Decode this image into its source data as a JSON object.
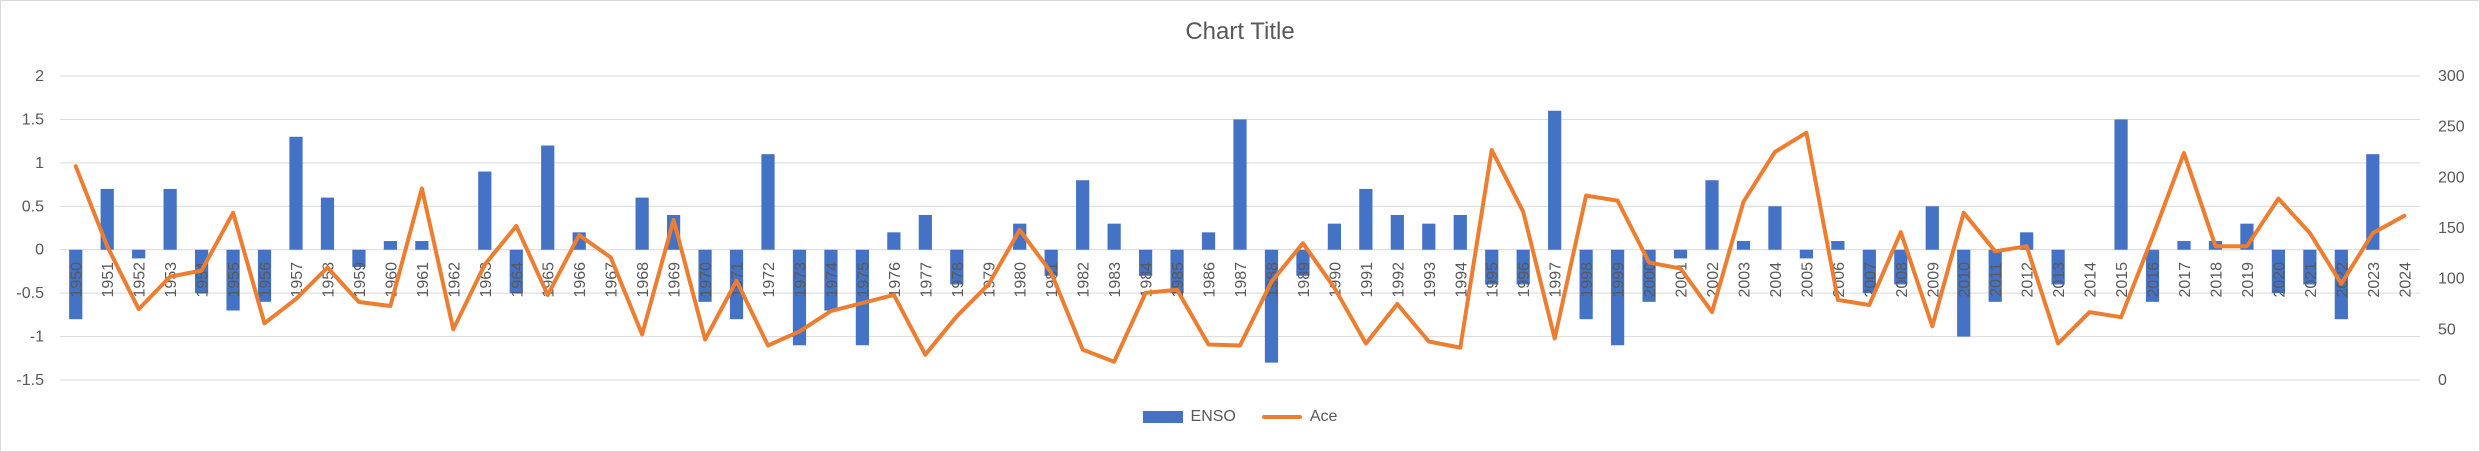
{
  "chart_data": {
    "type": "bar",
    "title": "Chart Title",
    "categories": [
      "1950",
      "1951",
      "1952",
      "1953",
      "1954",
      "1955",
      "1956",
      "1957",
      "1958",
      "1959",
      "1960",
      "1961",
      "1962",
      "1963",
      "1964",
      "1965",
      "1966",
      "1967",
      "1968",
      "1969",
      "1970",
      "1971",
      "1972",
      "1973",
      "1974",
      "1975",
      "1976",
      "1977",
      "1978",
      "1979",
      "1980",
      "1981",
      "1982",
      "1983",
      "1984",
      "1985",
      "1986",
      "1987",
      "1988",
      "1989",
      "1990",
      "1991",
      "1992",
      "1993",
      "1994",
      "1995",
      "1996",
      "1997",
      "1998",
      "1999",
      "2000",
      "2001",
      "2002",
      "2003",
      "2004",
      "2005",
      "2006",
      "2007",
      "2008",
      "2009",
      "2010",
      "2011",
      "2012",
      "2013",
      "2014",
      "2015",
      "2016",
      "2017",
      "2018",
      "2019",
      "2020",
      "2021",
      "2022",
      "2023",
      "2024"
    ],
    "series": [
      {
        "name": "ENSO",
        "type": "bar",
        "axis": "left",
        "color": "#4472c4",
        "values": [
          -0.8,
          0.7,
          -0.1,
          0.7,
          -0.5,
          -0.7,
          -0.6,
          1.3,
          0.6,
          -0.2,
          0.1,
          0.1,
          null,
          0.9,
          -0.5,
          1.2,
          0.2,
          null,
          0.6,
          0.4,
          -0.6,
          -0.8,
          1.1,
          -1.1,
          -0.7,
          -1.1,
          0.2,
          0.4,
          -0.4,
          null,
          0.3,
          -0.3,
          0.8,
          0.3,
          -0.3,
          -0.5,
          0.2,
          1.5,
          -1.3,
          -0.3,
          0.3,
          0.7,
          0.4,
          0.3,
          0.4,
          -0.4,
          -0.4,
          1.6,
          -0.8,
          -1.1,
          -0.6,
          -0.1,
          0.8,
          0.1,
          0.5,
          -0.1,
          0.1,
          -0.5,
          -0.4,
          0.5,
          -1.0,
          -0.6,
          0.2,
          -0.4,
          null,
          1.5,
          -0.6,
          0.1,
          0.1,
          0.3,
          -0.5,
          -0.4,
          -0.8,
          1.1,
          null
        ]
      },
      {
        "name": "Ace",
        "type": "line",
        "axis": "right",
        "color": "#ed7d31",
        "values": [
          211,
          132,
          70,
          102,
          108,
          165,
          56,
          80,
          111,
          77,
          73,
          189,
          50,
          114,
          152,
          84,
          143,
          121,
          45,
          158,
          40,
          98,
          34,
          48,
          68,
          76,
          84,
          25,
          63,
          94,
          148,
          106,
          30,
          18,
          86,
          89,
          35,
          34,
          97,
          135,
          91,
          36,
          75,
          38,
          32,
          227,
          166,
          41,
          182,
          177,
          116,
          110,
          67,
          176,
          225,
          244,
          79,
          74,
          146,
          53,
          165,
          127,
          132,
          36,
          67,
          62,
          141,
          224,
          132,
          132,
          179,
          145,
          95,
          145,
          162
        ]
      }
    ],
    "y_left": {
      "min": -1.5,
      "max": 2,
      "step": 0.5,
      "ticks": [
        "-1.5",
        "-1",
        "-0.5",
        "0",
        "0.5",
        "1",
        "1.5",
        "2"
      ]
    },
    "y_right": {
      "min": 0,
      "max": 300,
      "step": 50,
      "ticks": [
        "0",
        "50",
        "100",
        "150",
        "200",
        "250",
        "300"
      ]
    },
    "grid": "horizontal",
    "legend_position": "bottom",
    "legend": [
      "ENSO",
      "Ace"
    ]
  }
}
